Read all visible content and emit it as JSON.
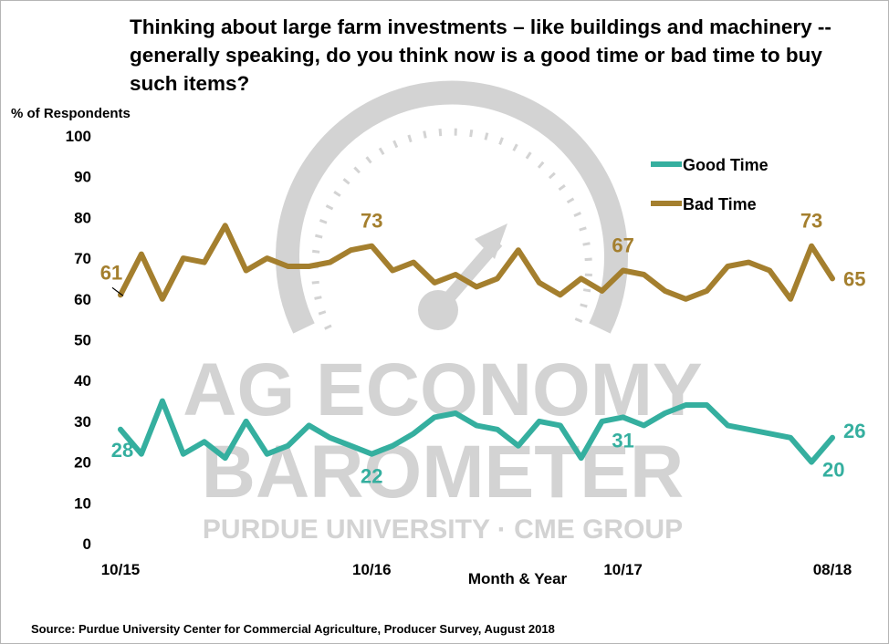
{
  "title": "Thinking about large farm investments – like buildings and machinery -- generally speaking, do you think now is a good time or bad time to buy such items?",
  "source": "Source: Purdue University Center for Commercial Agriculture, Producer Survey, August 2018",
  "watermark": {
    "line1": "AG ECONOMY",
    "line2": "BAROMETER",
    "line3": "PURDUE UNIVERSITY · CME GROUP",
    "icon": "gauge-icon"
  },
  "colors": {
    "good": "#35AF9F",
    "bad": "#A47F2E",
    "watermark": "#d3d3d3",
    "axis": "#000000"
  },
  "chart_data": {
    "type": "line",
    "ylabel": "% of Respondents",
    "xlabel": "Month & Year",
    "ylim": [
      0,
      100
    ],
    "yticks": [
      0,
      10,
      20,
      30,
      40,
      50,
      60,
      70,
      80,
      90,
      100
    ],
    "grid": false,
    "legend_position": "top-right",
    "x": [
      "10/15",
      "11/15",
      "12/15",
      "01/16",
      "02/16",
      "03/16",
      "04/16",
      "05/16",
      "06/16",
      "07/16",
      "08/16",
      "09/16",
      "10/16",
      "11/16",
      "12/16",
      "01/17",
      "02/17",
      "03/17",
      "04/17",
      "05/17",
      "06/17",
      "07/17",
      "08/17",
      "09/17",
      "10/17",
      "11/17",
      "12/17",
      "01/18",
      "02/18",
      "03/18",
      "04/18",
      "05/18",
      "06/18",
      "07/18",
      "08/18"
    ],
    "x_tick_labels": [
      {
        "index": 0,
        "label": "10/15"
      },
      {
        "index": 12,
        "label": "10/16"
      },
      {
        "index": 24,
        "label": "10/17"
      },
      {
        "index": 34,
        "label": "08/18"
      }
    ],
    "series": [
      {
        "name": "Good Time",
        "color": "#35AF9F",
        "values": [
          28,
          22,
          35,
          22,
          25,
          21,
          30,
          22,
          24,
          29,
          26,
          24,
          22,
          24,
          27,
          31,
          32,
          29,
          28,
          24,
          30,
          29,
          21,
          30,
          31,
          29,
          32,
          34,
          34,
          29,
          28,
          27,
          26,
          20,
          26
        ]
      },
      {
        "name": "Bad Time",
        "color": "#A47F2E",
        "values": [
          61,
          71,
          60,
          70,
          69,
          78,
          67,
          70,
          68,
          68,
          69,
          72,
          73,
          67,
          69,
          64,
          66,
          63,
          65,
          72,
          64,
          61,
          65,
          62,
          67,
          66,
          62,
          60,
          62,
          68,
          69,
          67,
          60,
          73,
          65
        ]
      }
    ],
    "annotations": [
      {
        "series": "Bad Time",
        "index": 0,
        "label": "61"
      },
      {
        "series": "Bad Time",
        "index": 12,
        "label": "73"
      },
      {
        "series": "Bad Time",
        "index": 24,
        "label": "67"
      },
      {
        "series": "Bad Time",
        "index": 33,
        "label": "73"
      },
      {
        "series": "Bad Time",
        "index": 34,
        "label": "65"
      },
      {
        "series": "Good Time",
        "index": 0,
        "label": "28"
      },
      {
        "series": "Good Time",
        "index": 12,
        "label": "22"
      },
      {
        "series": "Good Time",
        "index": 24,
        "label": "31"
      },
      {
        "series": "Good Time",
        "index": 33,
        "label": "20"
      },
      {
        "series": "Good Time",
        "index": 34,
        "label": "26"
      }
    ]
  }
}
